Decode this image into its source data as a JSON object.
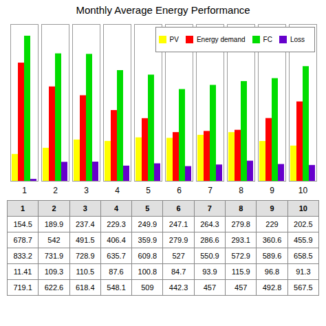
{
  "chart_data": {
    "type": "bar",
    "title": "Monthly Average Energy Performance",
    "categories": [
      "1",
      "2",
      "3",
      "4",
      "5",
      "6",
      "7",
      "8",
      "9",
      "10"
    ],
    "series": [
      {
        "name": "PV",
        "color": "#ffff00",
        "values": [
          154.5,
          189.9,
          237.4,
          229.3,
          249.9,
          247.1,
          264.3,
          279.8,
          229,
          202.5
        ]
      },
      {
        "name": "Energy demand",
        "color": "#ff0000",
        "values": [
          678.7,
          542,
          491.5,
          406.4,
          359.9,
          279.9,
          286.6,
          293.1,
          360.6,
          455.9
        ]
      },
      {
        "name": "FC",
        "color": "#00dd00",
        "values": [
          833.2,
          731.9,
          728.9,
          635.7,
          609.8,
          527,
          550.9,
          572.9,
          589.6,
          658.5
        ]
      },
      {
        "name": "Loss",
        "color": "#6600cc",
        "values": [
          11.41,
          109.3,
          110.5,
          87.6,
          100.8,
          84.7,
          93.9,
          115.9,
          96.8,
          91.3
        ]
      }
    ],
    "ylim": [
      0,
      900
    ],
    "yticks": [],
    "grid": false,
    "tick_labels": "x",
    "legend": "upper right",
    "table": {
      "columns": [
        "1",
        "2",
        "3",
        "4",
        "5",
        "6",
        "7",
        "8",
        "9",
        "10"
      ],
      "rows": [
        [
          154.5,
          189.9,
          237.4,
          229.3,
          249.9,
          247.1,
          264.3,
          279.8,
          229,
          202.5
        ],
        [
          678.7,
          542,
          491.5,
          406.4,
          359.9,
          279.9,
          286.6,
          293.1,
          360.6,
          455.9
        ],
        [
          833.2,
          731.9,
          728.9,
          635.7,
          609.8,
          527,
          550.9,
          572.9,
          589.6,
          658.5
        ],
        [
          11.41,
          109.3,
          110.5,
          87.6,
          100.8,
          84.7,
          93.9,
          115.9,
          96.8,
          91.3
        ],
        [
          719.1,
          622.6,
          618.4,
          548.1,
          509,
          442.3,
          457,
          457,
          492.8,
          567.5
        ]
      ]
    }
  }
}
